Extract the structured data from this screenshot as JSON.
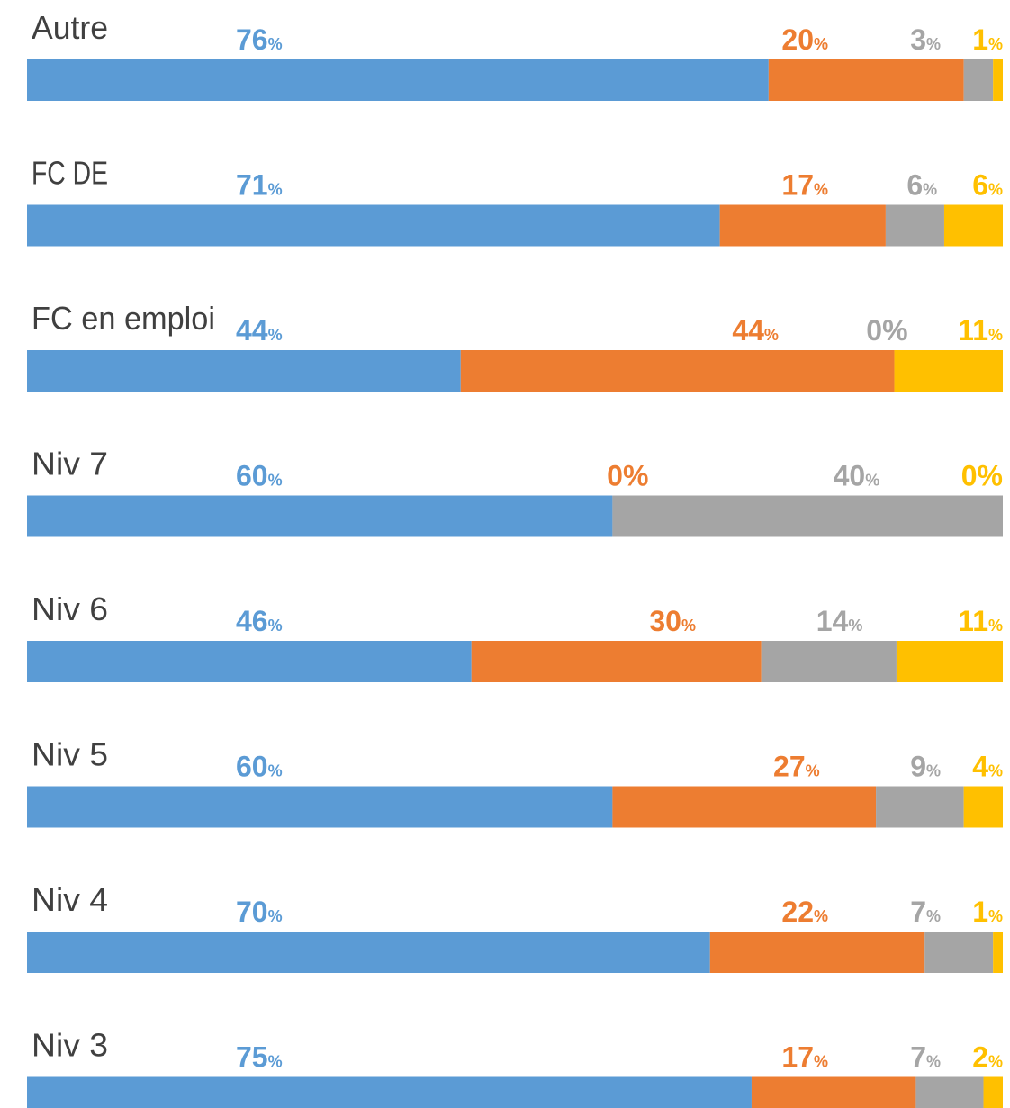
{
  "chart_data": {
    "type": "stacked-bar-100",
    "categories": [
      "Autre",
      "FC DE",
      "FC en emploi",
      "Niv 7",
      "Niv 6",
      "Niv 5",
      "Niv 4",
      "Niv 3"
    ],
    "series": [
      {
        "color": "#5b9bd5",
        "values": [
          76,
          71,
          44,
          60,
          46,
          60,
          70,
          75
        ],
        "value_labels": [
          "76%",
          "71%",
          "44%",
          "60%",
          "46%",
          "60%",
          "70%",
          "75%"
        ]
      },
      {
        "color": "#ed7d31",
        "values": [
          20,
          17,
          44,
          0,
          30,
          27,
          22,
          17
        ],
        "value_labels": [
          "20%",
          "17%",
          "44%",
          "0%",
          "30%",
          "27%",
          "22%",
          "17%"
        ]
      },
      {
        "color": "#a5a5a5",
        "values": [
          3,
          6,
          0,
          40,
          14,
          9,
          7,
          7
        ],
        "value_labels": [
          "3%",
          "6%",
          "0%",
          "40%",
          "14%",
          "9%",
          "7%",
          "7%"
        ]
      },
      {
        "color": "#ffc000",
        "values": [
          1,
          6,
          11,
          0,
          11,
          4,
          1,
          2
        ],
        "value_labels": [
          "1%",
          "6%",
          "11%",
          "0%",
          "11%",
          "4%",
          "1%",
          "2%"
        ]
      }
    ]
  }
}
